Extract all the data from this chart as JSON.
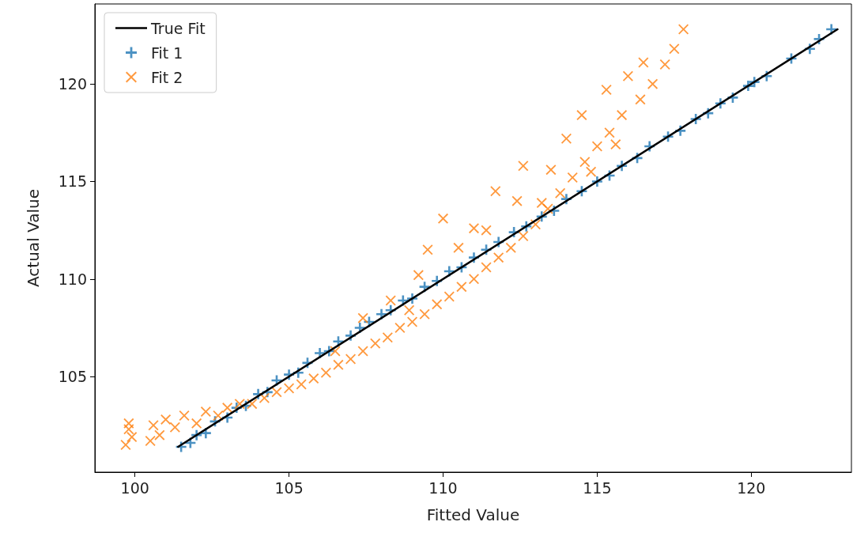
{
  "chart_data": {
    "type": "scatter",
    "xlabel": "Fitted Value",
    "ylabel": "Actual Value",
    "xlim": [
      98.7,
      123.25
    ],
    "xticks": [
      100,
      105,
      110,
      115,
      120
    ],
    "ylim": [
      100.1,
      124.1
    ],
    "yticks": [
      105,
      110,
      115,
      120
    ],
    "grid": false,
    "legend": "top left",
    "series": [
      {
        "name": "True Fit",
        "type": "line",
        "color": "#000000",
        "marker": "none",
        "line_style": "solid",
        "x": [
          101.4,
          122.8
        ],
        "values": [
          101.4,
          122.8
        ]
      },
      {
        "name": "Fit 1",
        "color": "#1f77b4",
        "marker": "cross",
        "x": [
          101.5,
          101.8,
          102.0,
          102.3,
          102.6,
          103.0,
          103.3,
          103.6,
          104.0,
          104.3,
          104.6,
          105.0,
          105.3,
          105.6,
          106.0,
          106.3,
          106.6,
          107.0,
          107.3,
          107.6,
          108.0,
          108.3,
          108.7,
          109.0,
          109.4,
          109.8,
          110.2,
          110.6,
          111.0,
          111.4,
          111.8,
          112.3,
          112.7,
          113.2,
          113.6,
          114.0,
          114.5,
          115.0,
          115.4,
          115.8,
          116.3,
          116.7,
          117.3,
          117.7,
          118.2,
          118.6,
          119.0,
          119.4,
          119.9,
          120.1,
          120.5,
          121.3,
          121.9,
          122.2,
          122.6
        ],
        "values": [
          101.4,
          101.6,
          102.0,
          102.1,
          102.7,
          102.9,
          103.4,
          103.5,
          104.1,
          104.2,
          104.8,
          105.1,
          105.2,
          105.7,
          106.2,
          106.3,
          106.8,
          107.1,
          107.5,
          107.8,
          108.2,
          108.4,
          108.9,
          109.0,
          109.6,
          109.9,
          110.4,
          110.6,
          111.1,
          111.5,
          111.9,
          112.4,
          112.7,
          113.2,
          113.5,
          114.1,
          114.5,
          115.0,
          115.3,
          115.8,
          116.2,
          116.8,
          117.3,
          117.6,
          118.2,
          118.5,
          119.0,
          119.3,
          119.9,
          120.1,
          120.4,
          121.3,
          121.8,
          122.3,
          122.8
        ]
      },
      {
        "name": "Fit 2",
        "color": "#ff7f0e",
        "marker": "x",
        "x": [
          99.7,
          99.8,
          99.9,
          99.8,
          100.5,
          100.6,
          100.8,
          101.0,
          101.3,
          101.6,
          102.0,
          102.3,
          102.7,
          103.0,
          103.4,
          103.8,
          104.2,
          104.6,
          105.0,
          105.4,
          105.8,
          106.2,
          106.6,
          107.0,
          107.4,
          107.8,
          108.2,
          108.6,
          109.0,
          109.4,
          109.8,
          110.2,
          110.6,
          111.0,
          111.4,
          111.8,
          112.2,
          112.6,
          113.0,
          113.4,
          113.8,
          114.2,
          114.6,
          115.0,
          115.4,
          115.8,
          116.4,
          116.8,
          117.2,
          117.5,
          117.8,
          107.4,
          108.3,
          109.2,
          109.5,
          110.0,
          110.5,
          111.0,
          111.4,
          111.7,
          112.4,
          112.6,
          113.5,
          114.0,
          114.5,
          115.3,
          116.0,
          116.5,
          106.5,
          108.9,
          113.2,
          114.8,
          115.6
        ],
        "values": [
          101.5,
          102.3,
          101.9,
          102.6,
          101.7,
          102.5,
          102.0,
          102.8,
          102.4,
          103.0,
          102.6,
          103.2,
          103.0,
          103.4,
          103.6,
          103.6,
          103.9,
          104.2,
          104.4,
          104.6,
          104.9,
          105.2,
          105.6,
          105.9,
          106.3,
          106.7,
          107.0,
          107.5,
          107.8,
          108.2,
          108.7,
          109.1,
          109.6,
          110.0,
          110.6,
          111.1,
          111.6,
          112.2,
          112.8,
          113.6,
          114.4,
          115.2,
          116.0,
          116.8,
          117.5,
          118.4,
          119.2,
          120.0,
          121.0,
          121.8,
          122.8,
          108.0,
          108.9,
          110.2,
          111.5,
          113.1,
          111.6,
          112.6,
          112.5,
          114.5,
          114.0,
          115.8,
          115.6,
          117.2,
          118.4,
          119.7,
          120.4,
          121.1,
          106.3,
          108.4,
          113.9,
          115.5,
          116.9
        ]
      }
    ]
  }
}
